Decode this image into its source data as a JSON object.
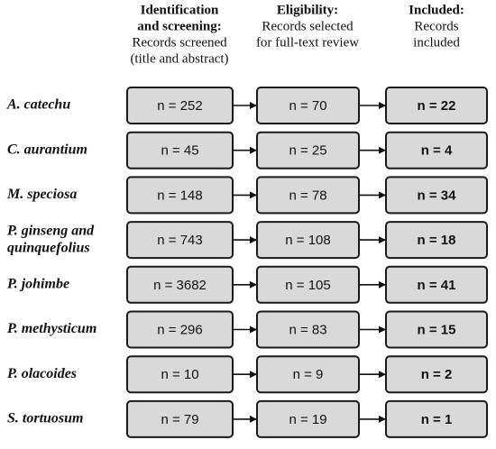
{
  "headers": [
    {
      "title_lines": [
        "Identification",
        "and screening:"
      ],
      "sub_lines": [
        "Records screened",
        "(title and abstract)"
      ]
    },
    {
      "title_lines": [
        "Eligibility:"
      ],
      "sub_lines": [
        "Records selected",
        "for full-text review"
      ]
    },
    {
      "title_lines": [
        "Included:"
      ],
      "sub_lines": [
        "Records",
        "included"
      ]
    }
  ],
  "rows": [
    {
      "label_lines": [
        "A. catechu"
      ],
      "screened": "n = 252",
      "eligible": "n = 70",
      "included": "n = 22"
    },
    {
      "label_lines": [
        "C. aurantium"
      ],
      "screened": "n = 45",
      "eligible": "n = 25",
      "included": "n = 4"
    },
    {
      "label_lines": [
        "M. speciosa"
      ],
      "screened": "n = 148",
      "eligible": "n = 78",
      "included": "n = 34"
    },
    {
      "label_lines": [
        "P. ginseng and",
        "quinquefolius"
      ],
      "screened": "n = 743",
      "eligible": "n = 108",
      "included": "n = 18"
    },
    {
      "label_lines": [
        "P. johimbe"
      ],
      "screened": "n = 3682",
      "eligible": "n = 105",
      "included": "n = 41"
    },
    {
      "label_lines": [
        "P. methysticum"
      ],
      "screened": "n = 296",
      "eligible": "n = 83",
      "included": "n = 15"
    },
    {
      "label_lines": [
        "P. olacoides"
      ],
      "screened": "n = 10",
      "eligible": "n = 9",
      "included": "n = 2"
    },
    {
      "label_lines": [
        "S. tortuosum"
      ],
      "screened": "n = 79",
      "eligible": "n = 19",
      "included": "n = 1"
    }
  ]
}
